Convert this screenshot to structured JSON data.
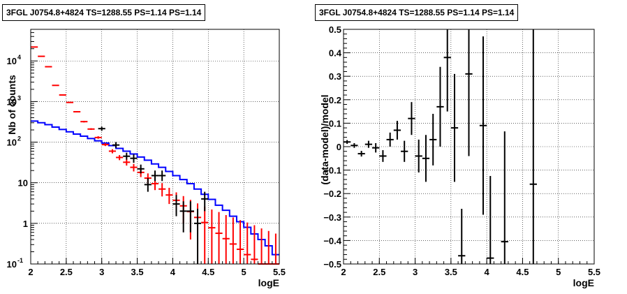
{
  "chart_data": [
    {
      "type": "step-histogram",
      "title": "3FGL J0754.8+4824 TS=1288.55 PS=1.14 PS=1.14",
      "xlabel": "logE",
      "ylabel": "Nb of counts",
      "xlim": [
        2,
        5.5
      ],
      "ylim": [
        0.1,
        60000
      ],
      "yscale": "log",
      "grid": true,
      "x_ticks": [
        "2",
        "2.5",
        "3",
        "3.5",
        "4",
        "4.5",
        "5",
        "5.5"
      ],
      "y_ticks": [
        "10^{-1}",
        "1",
        "10",
        "10^{2}",
        "10^{3}",
        "10^{4}"
      ],
      "bin_edges": [
        2.0,
        2.1,
        2.2,
        2.3,
        2.4,
        2.5,
        2.6,
        2.7,
        2.8,
        2.9,
        3.0,
        3.1,
        3.2,
        3.3,
        3.4,
        3.5,
        3.6,
        3.7,
        3.8,
        3.9,
        4.0,
        4.1,
        4.2,
        4.3,
        4.4,
        4.5,
        4.6,
        4.7,
        4.8,
        4.9,
        5.0,
        5.1,
        5.2,
        5.3,
        5.4,
        5.5
      ],
      "series": [
        {
          "color": "#0000ff",
          "values": [
            330,
            300,
            270,
            235,
            205,
            180,
            158,
            140,
            123,
            108,
            95,
            82,
            70,
            60,
            51,
            43,
            36,
            29,
            24,
            19,
            15,
            12,
            9.5,
            7,
            5.2,
            3.9,
            2.8,
            2.1,
            1.5,
            1.1,
            0.8,
            0.55,
            0.4,
            0.28,
            0.17
          ]
        },
        {
          "color": "#ff0000",
          "values": [
            22000,
            13000,
            7200,
            2500,
            1450,
            950,
            560,
            320,
            210,
            130,
            87,
            60,
            42,
            32,
            24,
            18,
            13,
            9.5,
            7,
            5,
            3.7,
            2.7,
            1.95,
            1.4,
            1.05,
            0.78,
            0.57,
            0.42,
            0.31,
            0.23,
            0.17,
            0.13,
            0.1,
            0.08,
            0.06
          ],
          "err_low": [
            21800,
            12850,
            7100,
            2450,
            1410,
            920,
            540,
            305,
            200,
            121,
            80,
            53,
            36,
            26.5,
            19,
            13.8,
            9.5,
            6.6,
            4.6,
            3.0,
            1.9,
            1.0,
            0.4,
            0.1,
            0.1,
            0.1,
            0.1,
            0.1,
            0.1,
            0.1,
            0.1,
            0.1,
            0.1,
            0.1,
            0.1
          ],
          "err_high": [
            22200,
            13150,
            7300,
            2550,
            1490,
            980,
            580,
            335,
            220,
            140,
            95,
            67,
            48,
            37.5,
            29,
            22.5,
            17,
            12.8,
            9.8,
            7.5,
            5.8,
            4.7,
            3.8,
            3.1,
            2.6,
            2.2,
            1.9,
            1.6,
            1.4,
            1.2,
            1.05,
            0.9,
            0.75,
            0.65,
            0.56
          ]
        }
      ],
      "points": [
        {
          "x": 3.0,
          "y": 215,
          "lo": 190,
          "hi": 240
        },
        {
          "x": 3.2,
          "y": 85,
          "lo": 72,
          "hi": 100
        },
        {
          "x": 3.35,
          "y": 45,
          "lo": 37,
          "hi": 55
        },
        {
          "x": 3.45,
          "y": 40,
          "lo": 31,
          "hi": 50
        },
        {
          "x": 3.55,
          "y": 22,
          "lo": 17,
          "hi": 28
        },
        {
          "x": 3.65,
          "y": 9,
          "lo": 6,
          "hi": 13
        },
        {
          "x": 3.75,
          "y": 15,
          "lo": 11,
          "hi": 20
        },
        {
          "x": 3.85,
          "y": 15,
          "lo": 11,
          "hi": 20
        },
        {
          "x": 4.05,
          "y": 3,
          "lo": 1.5,
          "hi": 5
        },
        {
          "x": 4.15,
          "y": 2,
          "lo": 0.6,
          "hi": 3.5
        },
        {
          "x": 4.25,
          "y": 2,
          "lo": 0.6,
          "hi": 3.5
        },
        {
          "x": 4.35,
          "y": 1,
          "lo": 0.1,
          "hi": 2.3
        },
        {
          "x": 4.45,
          "y": 4,
          "lo": 2,
          "hi": 6
        }
      ]
    },
    {
      "type": "scatter-errorbars",
      "title": "3FGL J0754.8+4824 TS=1288.55 PS=1.14 PS=1.14",
      "xlabel": "logE",
      "ylabel": "(data-model)/model",
      "xlim": [
        2,
        5.5
      ],
      "ylim": [
        -0.5,
        0.5
      ],
      "grid": true,
      "x_ticks": [
        "2",
        "2.5",
        "3",
        "3.5",
        "4",
        "4.5",
        "5",
        "5.5"
      ],
      "y_ticks": [
        "−0.5",
        "−0.4",
        "−0.3",
        "−0.2",
        "−0.1",
        "0",
        "0.1",
        "0.2",
        "0.3",
        "0.4",
        "0.5"
      ],
      "points": [
        {
          "x": 2.05,
          "y": 0.02,
          "err": 0.008
        },
        {
          "x": 2.15,
          "y": 0.005,
          "err": 0.01
        },
        {
          "x": 2.25,
          "y": -0.03,
          "err": 0.012
        },
        {
          "x": 2.35,
          "y": 0.01,
          "err": 0.015
        },
        {
          "x": 2.45,
          "y": -0.005,
          "err": 0.02
        },
        {
          "x": 2.55,
          "y": -0.04,
          "err": 0.025
        },
        {
          "x": 2.65,
          "y": 0.03,
          "err": 0.03
        },
        {
          "x": 2.75,
          "y": 0.07,
          "err": 0.04
        },
        {
          "x": 2.85,
          "y": -0.02,
          "err": 0.045
        },
        {
          "x": 2.95,
          "y": 0.12,
          "err": 0.07
        },
        {
          "x": 3.05,
          "y": -0.04,
          "err": 0.07
        },
        {
          "x": 3.15,
          "y": -0.05,
          "err": 0.1
        },
        {
          "x": 3.25,
          "y": 0.03,
          "err": 0.11
        },
        {
          "x": 3.35,
          "y": 0.17,
          "err": 0.17
        },
        {
          "x": 3.45,
          "y": 0.38,
          "err": 0.23
        },
        {
          "x": 3.55,
          "y": 0.08,
          "err": 0.23
        },
        {
          "x": 3.65,
          "y": -0.465,
          "err": 0.2
        },
        {
          "x": 3.75,
          "y": 0.31,
          "err": 0.35
        },
        {
          "x": 3.95,
          "y": 0.09,
          "err": 0.38
        },
        {
          "x": 4.05,
          "y": -0.475,
          "err": 0.35
        },
        {
          "x": 4.25,
          "y": -0.405,
          "err": 0.47
        },
        {
          "x": 4.65,
          "y": -0.16,
          "err": 0.9
        }
      ]
    }
  ]
}
